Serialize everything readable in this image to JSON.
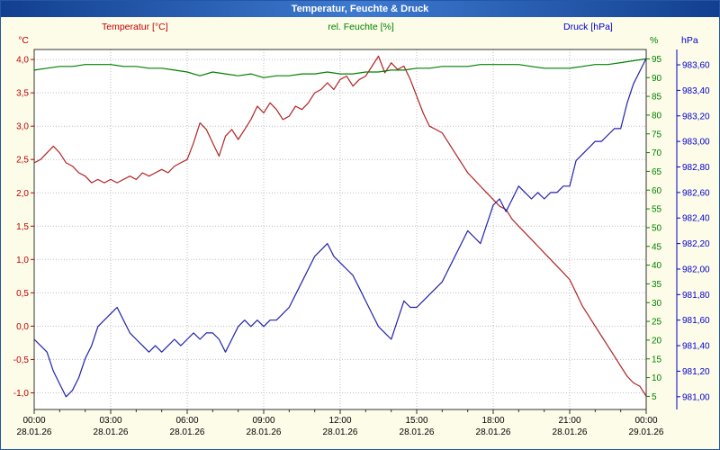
{
  "window": {
    "title": "Temperatur, Feuchte & Druck"
  },
  "colors": {
    "titlebar": "#1f4f9f",
    "background": "#fdfce9",
    "plot_background": "#ffffff",
    "grid": "#bcbcbc",
    "temperature": "#b22222",
    "humidity": "#008000",
    "pressure": "#2222aa"
  },
  "chart_data": {
    "type": "line",
    "title": "Temperatur, Feuchte & Druck",
    "grid": true,
    "legend_position": "top",
    "x_range": [
      0,
      24
    ],
    "x_axis": {
      "minor_tick_hours": 1,
      "major_ticks": [
        {
          "hour": 0,
          "time": "00:00",
          "date": "28.01.26"
        },
        {
          "hour": 3,
          "time": "03:00",
          "date": "28.01.26"
        },
        {
          "hour": 6,
          "time": "06:00",
          "date": "28.01.26"
        },
        {
          "hour": 9,
          "time": "09:00",
          "date": "28.01.26"
        },
        {
          "hour": 12,
          "time": "12:00",
          "date": "28.01.26"
        },
        {
          "hour": 15,
          "time": "15:00",
          "date": "28.01.26"
        },
        {
          "hour": 18,
          "time": "18:00",
          "date": "28.01.26"
        },
        {
          "hour": 21,
          "time": "21:00",
          "date": "28.01.26"
        },
        {
          "hour": 24,
          "time": "00:00",
          "date": "29.01.26"
        }
      ]
    },
    "axes": {
      "temperature": {
        "label": "Temperatur [°C]",
        "unit": "°C",
        "color": "#c00000",
        "min": -1.25,
        "max": 4.15,
        "tick_values": [
          4.0,
          3.5,
          3.0,
          2.5,
          2.0,
          1.5,
          1.0,
          0.5,
          0.0,
          -0.5,
          -1.0
        ],
        "tick_labels": [
          "4,0",
          "3,5",
          "3,0",
          "2,5",
          "2,0",
          "1,5",
          "1,0",
          "0,5",
          "0,0",
          "-0,5",
          "-1,0"
        ]
      },
      "humidity": {
        "label": "rel. Feuchte [%]",
        "unit": "%",
        "color": "#008000",
        "min": 1.5,
        "max": 97.5,
        "tick_values": [
          95,
          90,
          85,
          80,
          75,
          70,
          65,
          60,
          55,
          50,
          45,
          40,
          35,
          30,
          25,
          20,
          15,
          10,
          5
        ],
        "tick_labels": [
          "95",
          "90",
          "85",
          "80",
          "75",
          "70",
          "65",
          "60",
          "55",
          "50",
          "45",
          "40",
          "35",
          "30",
          "25",
          "20",
          "15",
          "10",
          "5"
        ]
      },
      "pressure": {
        "label": "Druck [hPa]",
        "unit": "hPa",
        "color": "#0000cc",
        "min": 980.9,
        "max": 983.72,
        "tick_values": [
          983.6,
          983.4,
          983.2,
          983.0,
          982.8,
          982.6,
          982.4,
          982.2,
          982.0,
          981.8,
          981.6,
          981.4,
          981.2,
          981.0
        ],
        "tick_labels": [
          "983,60",
          "983,40",
          "983,20",
          "983,00",
          "982,80",
          "982,60",
          "982,40",
          "982,20",
          "982,00",
          "981,80",
          "981,60",
          "981,40",
          "981,20",
          "981,00"
        ]
      }
    },
    "series": [
      {
        "name": "Temperatur",
        "axis": "temperature",
        "color": "#b22222",
        "points": [
          [
            0,
            2.45
          ],
          [
            0.25,
            2.5
          ],
          [
            0.5,
            2.6
          ],
          [
            0.75,
            2.7
          ],
          [
            1,
            2.6
          ],
          [
            1.25,
            2.45
          ],
          [
            1.5,
            2.4
          ],
          [
            1.75,
            2.3
          ],
          [
            2,
            2.25
          ],
          [
            2.25,
            2.15
          ],
          [
            2.5,
            2.2
          ],
          [
            2.75,
            2.15
          ],
          [
            3,
            2.2
          ],
          [
            3.25,
            2.15
          ],
          [
            3.5,
            2.2
          ],
          [
            3.75,
            2.25
          ],
          [
            4,
            2.2
          ],
          [
            4.25,
            2.3
          ],
          [
            4.5,
            2.25
          ],
          [
            4.75,
            2.3
          ],
          [
            5,
            2.35
          ],
          [
            5.25,
            2.3
          ],
          [
            5.5,
            2.4
          ],
          [
            5.75,
            2.45
          ],
          [
            6,
            2.5
          ],
          [
            6.25,
            2.75
          ],
          [
            6.5,
            3.05
          ],
          [
            6.75,
            2.95
          ],
          [
            7,
            2.75
          ],
          [
            7.25,
            2.55
          ],
          [
            7.5,
            2.85
          ],
          [
            7.75,
            2.95
          ],
          [
            8,
            2.8
          ],
          [
            8.25,
            2.95
          ],
          [
            8.5,
            3.1
          ],
          [
            8.75,
            3.3
          ],
          [
            9,
            3.2
          ],
          [
            9.25,
            3.35
          ],
          [
            9.5,
            3.25
          ],
          [
            9.75,
            3.1
          ],
          [
            10,
            3.15
          ],
          [
            10.25,
            3.3
          ],
          [
            10.5,
            3.25
          ],
          [
            10.75,
            3.35
          ],
          [
            11,
            3.5
          ],
          [
            11.25,
            3.55
          ],
          [
            11.5,
            3.65
          ],
          [
            11.75,
            3.55
          ],
          [
            12,
            3.7
          ],
          [
            12.25,
            3.75
          ],
          [
            12.5,
            3.6
          ],
          [
            12.75,
            3.7
          ],
          [
            13,
            3.75
          ],
          [
            13.25,
            3.9
          ],
          [
            13.5,
            4.05
          ],
          [
            13.75,
            3.8
          ],
          [
            14,
            3.95
          ],
          [
            14.25,
            3.85
          ],
          [
            14.5,
            3.9
          ],
          [
            14.75,
            3.7
          ],
          [
            15,
            3.45
          ],
          [
            15.25,
            3.2
          ],
          [
            15.5,
            3.0
          ],
          [
            15.75,
            2.95
          ],
          [
            16,
            2.9
          ],
          [
            16.25,
            2.75
          ],
          [
            16.5,
            2.6
          ],
          [
            16.75,
            2.45
          ],
          [
            17,
            2.3
          ],
          [
            17.25,
            2.2
          ],
          [
            17.5,
            2.1
          ],
          [
            17.75,
            2.0
          ],
          [
            18,
            1.9
          ],
          [
            18.25,
            1.8
          ],
          [
            18.5,
            1.75
          ],
          [
            18.75,
            1.6
          ],
          [
            19,
            1.5
          ],
          [
            19.25,
            1.4
          ],
          [
            19.5,
            1.3
          ],
          [
            19.75,
            1.2
          ],
          [
            20,
            1.1
          ],
          [
            20.25,
            1.0
          ],
          [
            20.5,
            0.9
          ],
          [
            20.75,
            0.8
          ],
          [
            21,
            0.7
          ],
          [
            21.25,
            0.5
          ],
          [
            21.5,
            0.3
          ],
          [
            21.75,
            0.15
          ],
          [
            22,
            0.0
          ],
          [
            22.25,
            -0.15
          ],
          [
            22.5,
            -0.3
          ],
          [
            22.75,
            -0.45
          ],
          [
            23,
            -0.6
          ],
          [
            23.25,
            -0.75
          ],
          [
            23.5,
            -0.85
          ],
          [
            23.75,
            -0.9
          ],
          [
            24,
            -1.05
          ]
        ]
      },
      {
        "name": "rel. Feuchte",
        "axis": "humidity",
        "color": "#008000",
        "points": [
          [
            0,
            92
          ],
          [
            0.5,
            92.5
          ],
          [
            1,
            93
          ],
          [
            1.5,
            93
          ],
          [
            2,
            93.5
          ],
          [
            2.5,
            93.5
          ],
          [
            3,
            93.5
          ],
          [
            3.5,
            93
          ],
          [
            4,
            93
          ],
          [
            4.5,
            92.5
          ],
          [
            5,
            92.5
          ],
          [
            5.5,
            92
          ],
          [
            6,
            91.5
          ],
          [
            6.5,
            90.5
          ],
          [
            7,
            91.5
          ],
          [
            7.5,
            91
          ],
          [
            8,
            90.5
          ],
          [
            8.5,
            91
          ],
          [
            9,
            90
          ],
          [
            9.5,
            90.5
          ],
          [
            10,
            90.5
          ],
          [
            10.5,
            91
          ],
          [
            11,
            91
          ],
          [
            11.5,
            91.5
          ],
          [
            12,
            91
          ],
          [
            12.5,
            91
          ],
          [
            13,
            91.5
          ],
          [
            13.5,
            91.5
          ],
          [
            14,
            92
          ],
          [
            14.5,
            92
          ],
          [
            15,
            92.5
          ],
          [
            15.5,
            92.5
          ],
          [
            16,
            93
          ],
          [
            16.5,
            93
          ],
          [
            17,
            93
          ],
          [
            17.5,
            93.5
          ],
          [
            18,
            93.5
          ],
          [
            18.5,
            93.5
          ],
          [
            19,
            93.5
          ],
          [
            19.5,
            93
          ],
          [
            20,
            92.5
          ],
          [
            20.5,
            92.5
          ],
          [
            21,
            92.5
          ],
          [
            21.5,
            93
          ],
          [
            22,
            93.5
          ],
          [
            22.5,
            93.5
          ],
          [
            23,
            94
          ],
          [
            23.5,
            94.5
          ],
          [
            24,
            95
          ]
        ]
      },
      {
        "name": "Druck",
        "axis": "pressure",
        "color": "#2222aa",
        "points": [
          [
            0,
            981.45
          ],
          [
            0.25,
            981.4
          ],
          [
            0.5,
            981.35
          ],
          [
            0.75,
            981.2
          ],
          [
            1,
            981.1
          ],
          [
            1.25,
            981.0
          ],
          [
            1.5,
            981.05
          ],
          [
            1.75,
            981.15
          ],
          [
            2,
            981.3
          ],
          [
            2.25,
            981.4
          ],
          [
            2.5,
            981.55
          ],
          [
            2.75,
            981.6
          ],
          [
            3,
            981.65
          ],
          [
            3.25,
            981.7
          ],
          [
            3.5,
            981.6
          ],
          [
            3.75,
            981.5
          ],
          [
            4,
            981.45
          ],
          [
            4.25,
            981.4
          ],
          [
            4.5,
            981.35
          ],
          [
            4.75,
            981.4
          ],
          [
            5,
            981.35
          ],
          [
            5.25,
            981.4
          ],
          [
            5.5,
            981.45
          ],
          [
            5.75,
            981.4
          ],
          [
            6,
            981.45
          ],
          [
            6.25,
            981.5
          ],
          [
            6.5,
            981.45
          ],
          [
            6.75,
            981.5
          ],
          [
            7,
            981.5
          ],
          [
            7.25,
            981.45
          ],
          [
            7.5,
            981.35
          ],
          [
            7.75,
            981.45
          ],
          [
            8,
            981.55
          ],
          [
            8.25,
            981.6
          ],
          [
            8.5,
            981.55
          ],
          [
            8.75,
            981.6
          ],
          [
            9,
            981.55
          ],
          [
            9.25,
            981.6
          ],
          [
            9.5,
            981.6
          ],
          [
            9.75,
            981.65
          ],
          [
            10,
            981.7
          ],
          [
            10.25,
            981.8
          ],
          [
            10.5,
            981.9
          ],
          [
            10.75,
            982.0
          ],
          [
            11,
            982.1
          ],
          [
            11.25,
            982.15
          ],
          [
            11.5,
            982.2
          ],
          [
            11.75,
            982.1
          ],
          [
            12,
            982.05
          ],
          [
            12.25,
            982.0
          ],
          [
            12.5,
            981.95
          ],
          [
            12.75,
            981.85
          ],
          [
            13,
            981.75
          ],
          [
            13.25,
            981.65
          ],
          [
            13.5,
            981.55
          ],
          [
            13.75,
            981.5
          ],
          [
            14,
            981.45
          ],
          [
            14.25,
            981.6
          ],
          [
            14.5,
            981.75
          ],
          [
            14.75,
            981.7
          ],
          [
            15,
            981.7
          ],
          [
            15.25,
            981.75
          ],
          [
            15.5,
            981.8
          ],
          [
            15.75,
            981.85
          ],
          [
            16,
            981.9
          ],
          [
            16.25,
            982.0
          ],
          [
            16.5,
            982.1
          ],
          [
            16.75,
            982.2
          ],
          [
            17,
            982.3
          ],
          [
            17.25,
            982.25
          ],
          [
            17.5,
            982.2
          ],
          [
            17.75,
            982.35
          ],
          [
            18,
            982.5
          ],
          [
            18.25,
            982.55
          ],
          [
            18.5,
            982.45
          ],
          [
            18.75,
            982.55
          ],
          [
            19,
            982.65
          ],
          [
            19.25,
            982.6
          ],
          [
            19.5,
            982.55
          ],
          [
            19.75,
            982.6
          ],
          [
            20,
            982.55
          ],
          [
            20.25,
            982.6
          ],
          [
            20.5,
            982.6
          ],
          [
            20.75,
            982.65
          ],
          [
            21,
            982.65
          ],
          [
            21.25,
            982.85
          ],
          [
            21.5,
            982.9
          ],
          [
            21.75,
            982.95
          ],
          [
            22,
            983.0
          ],
          [
            22.25,
            983.0
          ],
          [
            22.5,
            983.05
          ],
          [
            22.75,
            983.1
          ],
          [
            23,
            983.1
          ],
          [
            23.25,
            983.3
          ],
          [
            23.5,
            983.45
          ],
          [
            23.75,
            983.55
          ],
          [
            24,
            983.65
          ]
        ]
      }
    ]
  }
}
